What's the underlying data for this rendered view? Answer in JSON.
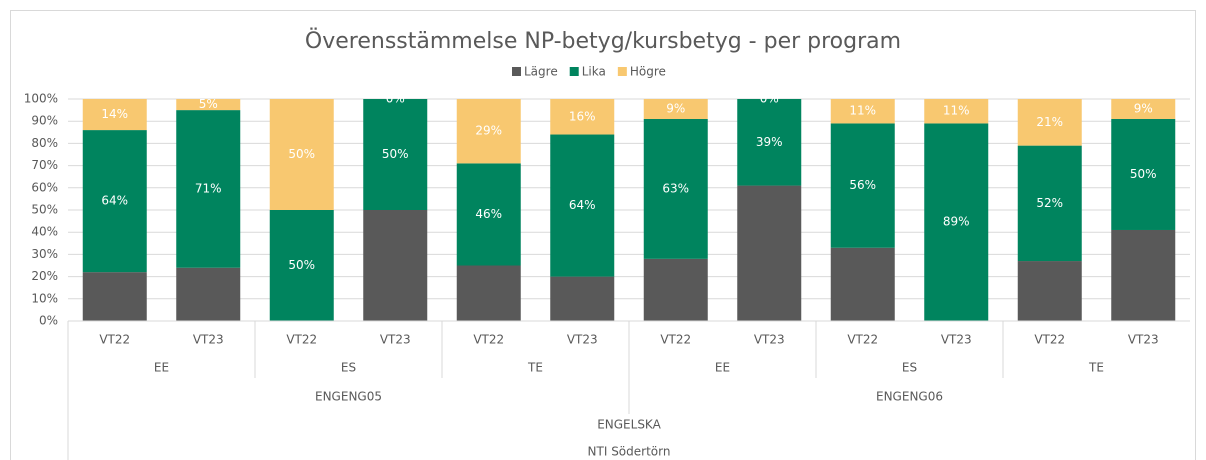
{
  "chart_data": {
    "type": "bar",
    "stacked": true,
    "title": "Överensstämmelse NP-betyg/kursbetyg - per program",
    "categories": [
      "VT22",
      "VT23",
      "VT22",
      "VT23",
      "VT22",
      "VT23",
      "VT22",
      "VT23",
      "VT22",
      "VT23",
      "VT22",
      "VT23"
    ],
    "category_levels": [
      [
        "EE",
        "ES",
        "TE",
        "EE",
        "ES",
        "TE"
      ],
      [
        "ENGENG05",
        "ENGENG06"
      ],
      [
        "ENGELSKA"
      ],
      [
        "NTI Södertörn"
      ]
    ],
    "series": [
      {
        "name": "Lägre",
        "color": "#595959",
        "values": [
          22,
          24,
          0,
          50,
          25,
          20,
          28,
          61,
          33,
          0,
          27,
          41
        ]
      },
      {
        "name": "Lika",
        "color": "#00845e",
        "values": [
          64,
          71,
          50,
          50,
          46,
          64,
          63,
          39,
          56,
          89,
          52,
          50
        ],
        "value_labels": [
          "64%",
          "71%",
          "50%",
          "50%",
          "46%",
          "64%",
          "63%",
          "39%",
          "56%",
          "89%",
          "52%",
          "50%"
        ]
      },
      {
        "name": "Högre",
        "color": "#f8c870",
        "values": [
          14,
          5,
          50,
          0,
          29,
          16,
          9,
          0,
          11,
          11,
          21,
          9
        ],
        "value_labels": [
          "14%",
          "5%",
          "50%",
          "0%",
          "29%",
          "16%",
          "9%",
          "0%",
          "11%",
          "11%",
          "21%",
          "9%"
        ]
      }
    ],
    "ylim": [
      0,
      100
    ],
    "yticks": [
      {
        "value": 0,
        "label": "0%"
      },
      {
        "value": 10,
        "label": "10%"
      },
      {
        "value": 20,
        "label": "20%"
      },
      {
        "value": 30,
        "label": "30%"
      },
      {
        "value": 40,
        "label": "40%"
      },
      {
        "value": 50,
        "label": "50%"
      },
      {
        "value": 60,
        "label": "60%"
      },
      {
        "value": 70,
        "label": "70%"
      },
      {
        "value": 80,
        "label": "80%"
      },
      {
        "value": 90,
        "label": "90%"
      },
      {
        "value": 100,
        "label": "100%"
      }
    ],
    "grid": true,
    "legend": "top"
  }
}
